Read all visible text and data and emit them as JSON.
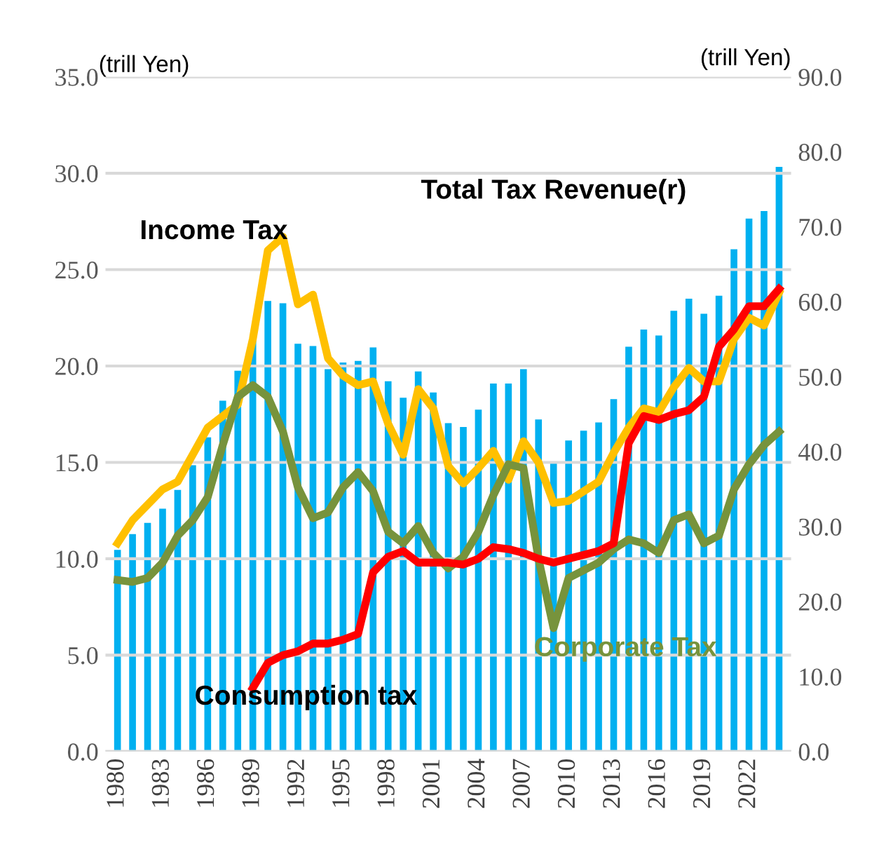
{
  "chart_data": {
    "type": "line",
    "categories": [
      "1980",
      null,
      null,
      "1983",
      null,
      null,
      "1986",
      null,
      null,
      "1989",
      null,
      null,
      "1992",
      null,
      null,
      "1995",
      null,
      null,
      "1998",
      null,
      null,
      "2001",
      null,
      null,
      "2004",
      null,
      null,
      "2007",
      null,
      null,
      "2010",
      null,
      null,
      "2013",
      null,
      null,
      "2016",
      null,
      null,
      "2019",
      null,
      null,
      "2022",
      null,
      null
    ],
    "ylabel": "(trill Yen)",
    "y2label": "(trill Yen)",
    "ylim": [
      0,
      35
    ],
    "yticks": [
      {
        "value": 0,
        "label": "0.0"
      },
      {
        "value": 5,
        "label": "5.0"
      },
      {
        "value": 10,
        "label": "10.0"
      },
      {
        "value": 15,
        "label": "15.0"
      },
      {
        "value": 20,
        "label": "20.0"
      },
      {
        "value": 25,
        "label": "25.0"
      },
      {
        "value": 30,
        "label": "30.0"
      },
      {
        "value": 35,
        "label": "35.0"
      }
    ],
    "y2lim": [
      0,
      90
    ],
    "y2ticks": [
      {
        "value": 0,
        "label": "0.0"
      },
      {
        "value": 10,
        "label": "10.0"
      },
      {
        "value": 20,
        "label": "20.0"
      },
      {
        "value": 30,
        "label": "30.0"
      },
      {
        "value": 40,
        "label": "40.0"
      },
      {
        "value": 50,
        "label": "50.0"
      },
      {
        "value": 60,
        "label": "60.0"
      },
      {
        "value": 70,
        "label": "70.0"
      },
      {
        "value": 80,
        "label": "80.0"
      },
      {
        "value": 90,
        "label": "90.0"
      }
    ],
    "grid": "y",
    "legend": false,
    "series": [
      {
        "type": "bar",
        "name": "Total Tax Revenue(r)",
        "axis": "y2",
        "color": "#00b0f0",
        "values": [
          26.9,
          29.0,
          30.5,
          32.4,
          34.9,
          38.2,
          41.9,
          46.8,
          50.8,
          54.9,
          60.1,
          59.8,
          54.4,
          54.1,
          51.0,
          51.9,
          52.1,
          53.9,
          49.4,
          47.2,
          50.7,
          47.9,
          43.8,
          43.3,
          45.6,
          49.1,
          49.1,
          51.0,
          44.3,
          38.7,
          41.5,
          42.8,
          43.9,
          47.0,
          54.0,
          56.3,
          55.5,
          58.8,
          60.4,
          58.4,
          60.8,
          67.0,
          71.1,
          72.1,
          78.0
        ]
      },
      {
        "name": "Income Tax",
        "color": "#ffc000",
        "values": [
          10.8,
          12.0,
          12.8,
          13.6,
          14.0,
          15.4,
          16.8,
          17.4,
          18.0,
          21.4,
          26.0,
          26.7,
          23.2,
          23.7,
          20.4,
          19.5,
          19.0,
          19.2,
          17.0,
          15.4,
          18.8,
          17.8,
          14.8,
          13.9,
          14.7,
          15.6,
          14.1,
          16.1,
          15.0,
          12.9,
          13.0,
          13.5,
          14.0,
          15.5,
          16.8,
          17.8,
          17.6,
          18.9,
          19.9,
          19.2,
          19.2,
          21.4,
          22.5,
          22.1,
          23.8
        ]
      },
      {
        "name": "Corporate Tax",
        "color": "#77933c",
        "values": [
          8.9,
          8.8,
          9.0,
          9.8,
          11.2,
          12.0,
          13.2,
          15.9,
          18.4,
          19.0,
          18.4,
          16.6,
          13.7,
          12.1,
          12.4,
          13.7,
          14.5,
          13.5,
          11.4,
          10.8,
          11.7,
          10.3,
          9.5,
          10.1,
          11.4,
          13.3,
          14.9,
          14.7,
          10.0,
          6.4,
          9.0,
          9.4,
          9.8,
          10.5,
          11.0,
          10.8,
          10.3,
          12.0,
          12.3,
          10.8,
          11.2,
          13.6,
          14.9,
          15.9,
          16.6
        ]
      },
      {
        "name": "Consumption tax",
        "color": "#ff0000",
        "values": [
          null,
          null,
          null,
          null,
          null,
          null,
          null,
          null,
          null,
          3.3,
          4.6,
          5.0,
          5.2,
          5.6,
          5.6,
          5.8,
          6.1,
          9.3,
          10.1,
          10.4,
          9.8,
          9.8,
          9.8,
          9.7,
          10.0,
          10.6,
          10.5,
          10.3,
          10.0,
          9.8,
          10.0,
          10.2,
          10.4,
          10.8,
          16.0,
          17.4,
          17.2,
          17.5,
          17.7,
          18.4,
          21.0,
          21.9,
          23.1,
          23.1,
          24.0
        ]
      }
    ]
  }
}
